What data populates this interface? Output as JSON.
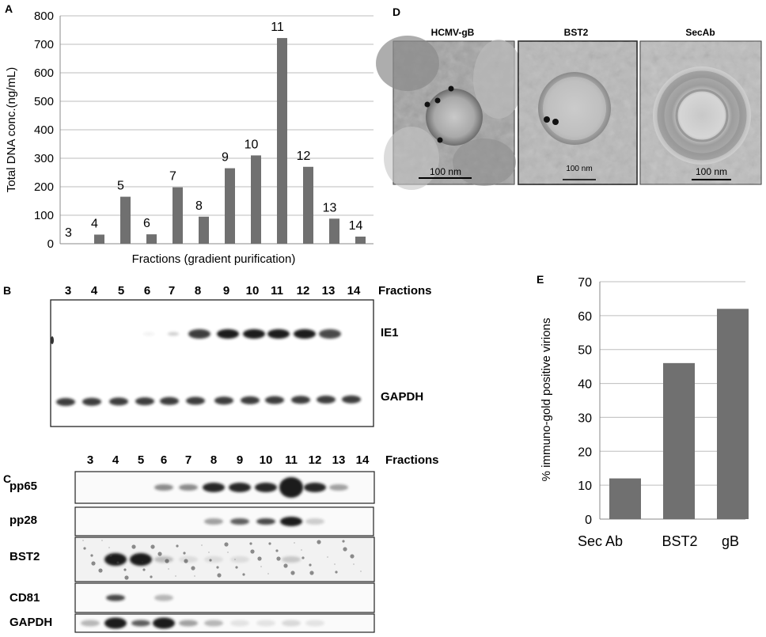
{
  "colors": {
    "bar": "#707070",
    "grid": "#bdbdbd",
    "band": "#1a1a1a"
  },
  "panels": {
    "A": {
      "letter": "A"
    },
    "B": {
      "letter": "B"
    },
    "C": {
      "letter": "C"
    },
    "D": {
      "letter": "D"
    },
    "E": {
      "letter": "E"
    }
  },
  "chart_data": [
    {
      "type": "bar",
      "panel": "A",
      "title": "",
      "xlabel": "Fractions (gradient purification)",
      "ylabel": "Total DNA conc.(ng/mL)",
      "ylim": [
        0,
        800
      ],
      "yticks": [
        0,
        100,
        200,
        300,
        400,
        500,
        600,
        700,
        800
      ],
      "categories": [
        "3",
        "4",
        "5",
        "6",
        "7",
        "8",
        "9",
        "10",
        "11",
        "12",
        "13",
        "14"
      ],
      "values": [
        0,
        32,
        165,
        33,
        198,
        95,
        265,
        310,
        722,
        270,
        88,
        25
      ],
      "grid": true
    },
    {
      "type": "bar",
      "panel": "E",
      "title": "",
      "xlabel": "",
      "ylabel": "% immuno-gold positive virions",
      "ylim": [
        0,
        70
      ],
      "yticks": [
        0,
        10,
        20,
        30,
        40,
        50,
        60,
        70
      ],
      "categories": [
        "Sec Ab",
        "BST2",
        "gB"
      ],
      "values": [
        12,
        46,
        62
      ],
      "grid": true
    }
  ],
  "blotB": {
    "fractions": [
      "3",
      "4",
      "5",
      "6",
      "7",
      "8",
      "9",
      "10",
      "11",
      "12",
      "13",
      "14"
    ],
    "header": "Fractions",
    "rows": [
      {
        "label": "IE1",
        "intensity": [
          0,
          0,
          0,
          0.05,
          0.2,
          0.85,
          1,
          1,
          1,
          1,
          0.8,
          0
        ]
      },
      {
        "label": "GAPDH",
        "intensity": [
          0.85,
          0.85,
          0.85,
          0.85,
          0.85,
          0.85,
          0.85,
          0.85,
          0.85,
          0.85,
          0.85,
          0.85
        ]
      }
    ]
  },
  "blotC": {
    "fractions": [
      "3",
      "4",
      "5",
      "6",
      "7",
      "8",
      "9",
      "10",
      "11",
      "12",
      "13",
      "14"
    ],
    "header": "Fractions",
    "rows": [
      {
        "label": "pp65",
        "intensity": [
          0,
          0,
          0,
          0.5,
          0.5,
          0.95,
          0.95,
          0.95,
          1,
          0.95,
          0.4,
          0
        ]
      },
      {
        "label": "pp28",
        "intensity": [
          0,
          0,
          0,
          0,
          0,
          0.4,
          0.7,
          0.8,
          1,
          0.2,
          0,
          0
        ]
      },
      {
        "label": "BST2",
        "intensity": [
          0,
          1,
          1,
          0.25,
          0.1,
          0.1,
          0.1,
          0,
          0.2,
          0,
          0,
          0
        ]
      },
      {
        "label": "CD81",
        "intensity": [
          0,
          0.8,
          0,
          0.3,
          0,
          0,
          0,
          0,
          0,
          0,
          0,
          0
        ]
      },
      {
        "label": "GAPDH",
        "intensity": [
          0.3,
          1,
          0.7,
          1,
          0.4,
          0.3,
          0.1,
          0.1,
          0.15,
          0.1,
          0,
          0
        ]
      }
    ]
  },
  "micrographs": [
    {
      "label": "HCMV-gB",
      "scale": "100 nm"
    },
    {
      "label": "BST2",
      "scale": "100 nm"
    },
    {
      "label": "SecAb",
      "scale": "100 nm"
    }
  ]
}
